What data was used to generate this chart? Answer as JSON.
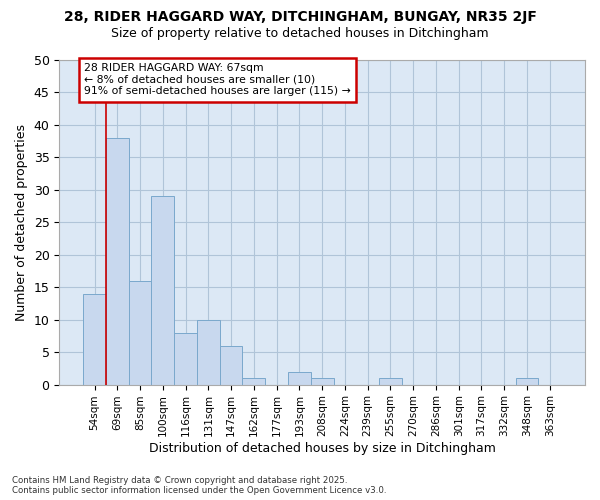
{
  "title_line1": "28, RIDER HAGGARD WAY, DITCHINGHAM, BUNGAY, NR35 2JF",
  "title_line2": "Size of property relative to detached houses in Ditchingham",
  "xlabel": "Distribution of detached houses by size in Ditchingham",
  "ylabel": "Number of detached properties",
  "categories": [
    "54sqm",
    "69sqm",
    "85sqm",
    "100sqm",
    "116sqm",
    "131sqm",
    "147sqm",
    "162sqm",
    "177sqm",
    "193sqm",
    "208sqm",
    "224sqm",
    "239sqm",
    "255sqm",
    "270sqm",
    "286sqm",
    "301sqm",
    "317sqm",
    "332sqm",
    "348sqm",
    "363sqm"
  ],
  "values": [
    14,
    38,
    16,
    29,
    8,
    10,
    6,
    1,
    0,
    2,
    1,
    0,
    0,
    1,
    0,
    0,
    0,
    0,
    0,
    1,
    0
  ],
  "bar_color": "#c8d8ee",
  "bar_edge_color": "#7aa8cc",
  "bar_edge_width": 0.7,
  "ylim": [
    0,
    50
  ],
  "yticks": [
    0,
    5,
    10,
    15,
    20,
    25,
    30,
    35,
    40,
    45,
    50
  ],
  "grid_color": "#b0c4d8",
  "bg_color": "#dce8f5",
  "annotation_line1": "28 RIDER HAGGARD WAY: 67sqm",
  "annotation_line2": "← 8% of detached houses are smaller (10)",
  "annotation_line3": "91% of semi-detached houses are larger (115) →",
  "annotation_box_color": "#cc0000",
  "footer_line1": "Contains HM Land Registry data © Crown copyright and database right 2025.",
  "footer_line2": "Contains public sector information licensed under the Open Government Licence v3.0."
}
